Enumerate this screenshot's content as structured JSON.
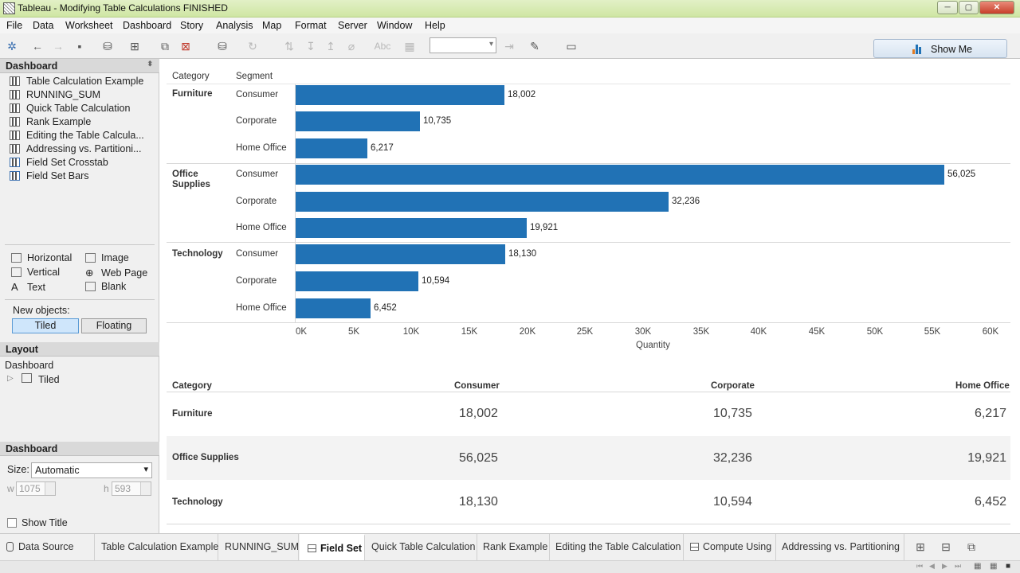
{
  "window": {
    "title": "Tableau - Modifying Table Calculations FINISHED"
  },
  "menu": [
    "File",
    "Data",
    "Worksheet",
    "Dashboard",
    "Story",
    "Analysis",
    "Map",
    "Format",
    "Server",
    "Window",
    "Help"
  ],
  "toolbar": {
    "show_me": "Show Me",
    "text_style_label": "Abc"
  },
  "left": {
    "dashboard_header": "Dashboard",
    "sheets": [
      "Table Calculation Example",
      "RUNNING_SUM",
      "Quick Table Calculation",
      "Rank Example",
      "Editing the Table Calcula...",
      "Addressing vs. Partitioni...",
      "Field Set Crosstab",
      "Field Set Bars"
    ],
    "objects": {
      "horizontal": "Horizontal",
      "vertical": "Vertical",
      "text": "Text",
      "image": "Image",
      "web_page": "Web Page",
      "blank": "Blank"
    },
    "new_objects_label": "New objects:",
    "tiled": "Tiled",
    "floating": "Floating",
    "layout_header": "Layout",
    "layout_root": "Dashboard",
    "layout_child": "Tiled",
    "size_header": "Dashboard",
    "size_label": "Size:",
    "size_value": "Automatic",
    "w_label": "w",
    "w_value": "1075",
    "h_label": "h",
    "h_value": "593",
    "show_title": "Show Title"
  },
  "chart": {
    "col_category": "Category",
    "col_segment": "Segment",
    "axis_title": "Quantity",
    "ticks": [
      "0K",
      "5K",
      "10K",
      "15K",
      "20K",
      "25K",
      "30K",
      "35K",
      "40K",
      "45K",
      "50K",
      "55K",
      "60K"
    ]
  },
  "chart_data": {
    "type": "bar",
    "orientation": "horizontal",
    "xlabel": "Quantity",
    "xlim": [
      0,
      60000
    ],
    "grid": false,
    "groups": [
      {
        "category": "Furniture",
        "cat_label": [
          "Furniture"
        ],
        "bars": [
          {
            "segment": "Consumer",
            "value": 18002,
            "label": "18,002"
          },
          {
            "segment": "Corporate",
            "value": 10735,
            "label": "10,735"
          },
          {
            "segment": "Home Office",
            "value": 6217,
            "label": "6,217"
          }
        ]
      },
      {
        "category": "Office Supplies",
        "cat_label": [
          "Office",
          "Supplies"
        ],
        "bars": [
          {
            "segment": "Consumer",
            "value": 56025,
            "label": "56,025"
          },
          {
            "segment": "Corporate",
            "value": 32236,
            "label": "32,236"
          },
          {
            "segment": "Home Office",
            "value": 19921,
            "label": "19,921"
          }
        ]
      },
      {
        "category": "Technology",
        "cat_label": [
          "Technology"
        ],
        "bars": [
          {
            "segment": "Consumer",
            "value": 18130,
            "label": "18,130"
          },
          {
            "segment": "Corporate",
            "value": 10594,
            "label": "10,594"
          },
          {
            "segment": "Home Office",
            "value": 6452,
            "label": "6,452"
          }
        ]
      }
    ],
    "bar_color": "#2172b5"
  },
  "table": {
    "headers": [
      "Category",
      "Consumer",
      "Corporate",
      "Home Office"
    ],
    "rows": [
      [
        "Furniture",
        "18,002",
        "10,735",
        "6,217"
      ],
      [
        "Office Supplies",
        "56,025",
        "32,236",
        "19,921"
      ],
      [
        "Technology",
        "18,130",
        "10,594",
        "6,452"
      ]
    ]
  },
  "tabs": [
    "Data Source",
    "Table Calculation Example",
    "RUNNING_SUM",
    "Field Set",
    "Quick Table Calculation",
    "Rank Example",
    "Editing the Table Calculation",
    "Compute Using",
    "Addressing vs. Partitioning"
  ]
}
